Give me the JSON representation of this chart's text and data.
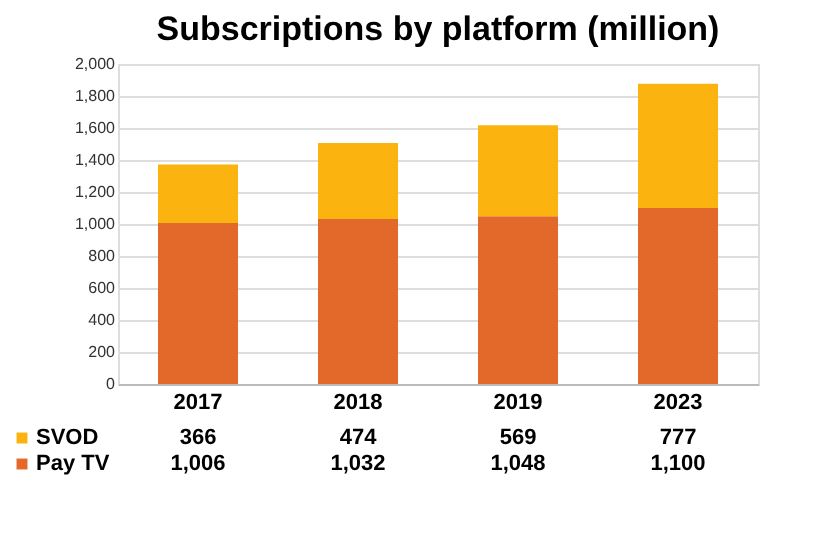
{
  "chart_data": {
    "type": "bar",
    "title": "Subscriptions by platform (million)",
    "categories": [
      "2017",
      "2018",
      "2019",
      "2023"
    ],
    "series": [
      {
        "name": "Pay TV",
        "color": "#e2692a",
        "values": [
          1006,
          1032,
          1048,
          1100
        ],
        "value_labels": [
          "1,006",
          "1,032",
          "1,048",
          "1,100"
        ]
      },
      {
        "name": "SVOD",
        "color": "#fbb40f",
        "values": [
          366,
          474,
          569,
          777
        ],
        "value_labels": [
          "366",
          "474",
          "569",
          "777"
        ]
      }
    ],
    "stacked": true,
    "ylim": [
      0,
      2000
    ],
    "yticks": [
      0,
      200,
      400,
      600,
      800,
      {
        "value": 1000,
        "label": "1,000"
      },
      {
        "value": 1200,
        "label": "1,200"
      },
      {
        "value": 1400,
        "label": "1,400"
      },
      {
        "value": 1600,
        "label": "1,600"
      },
      {
        "value": 1800,
        "label": "1,800"
      },
      {
        "value": 2000,
        "label": "2,000"
      }
    ],
    "grid": "y",
    "legend": "bottom left"
  }
}
